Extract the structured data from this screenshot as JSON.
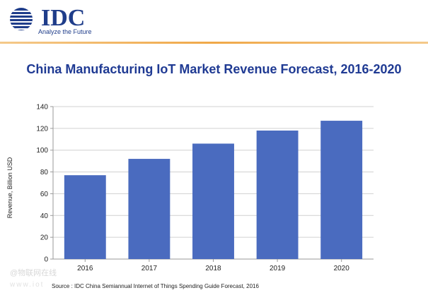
{
  "header": {
    "logo_text": "IDC",
    "tagline": "Analyze the Future"
  },
  "watermark": {
    "line1": "@物联网在线",
    "line2": "www.iot"
  },
  "chart_data": {
    "type": "bar",
    "title": "China Manufacturing IoT Market Revenue Forecast, 2016-2020",
    "xlabel": "",
    "ylabel": "Revenue, Billion USD",
    "categories": [
      "2016",
      "2017",
      "2018",
      "2019",
      "2020"
    ],
    "values": [
      77,
      92,
      106,
      118,
      127
    ],
    "ylim": [
      0,
      140
    ],
    "yticks": [
      0,
      20,
      40,
      60,
      80,
      100,
      120,
      140
    ],
    "grid": true,
    "bar_color": "#4a6bbf",
    "source": "Source : IDC China Semiannual Internet of Things Spending Guide Forecast, 2016"
  }
}
